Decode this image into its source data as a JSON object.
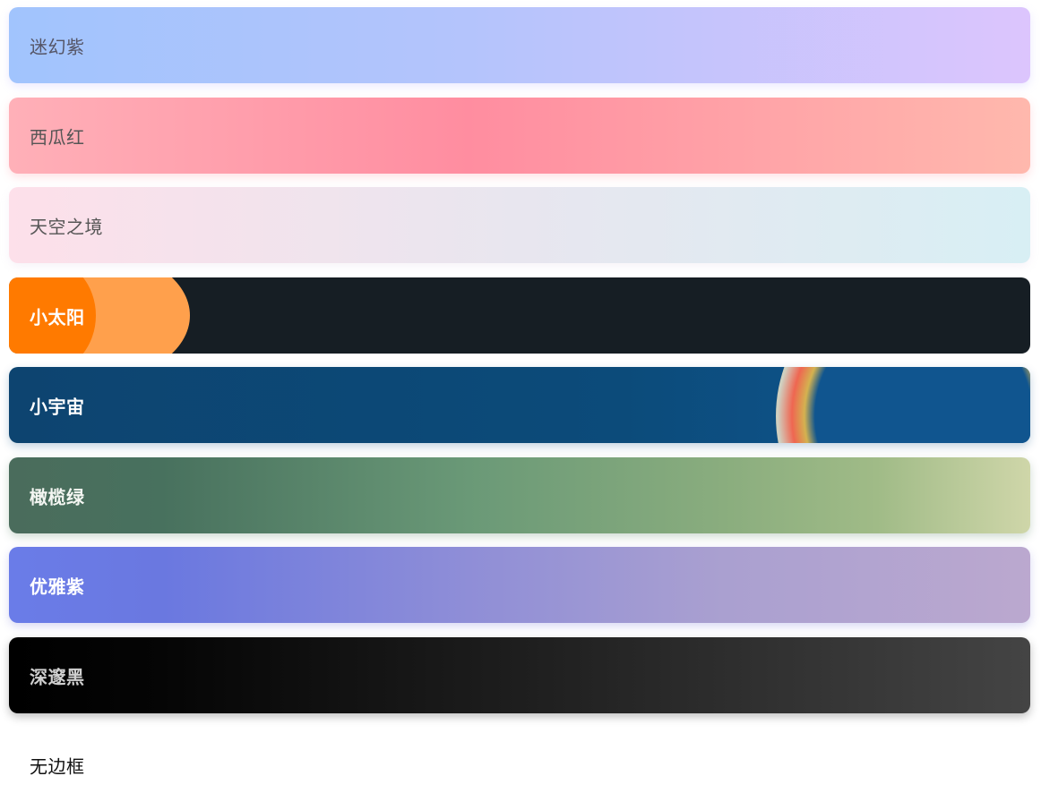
{
  "themes": [
    {
      "label": "迷幻紫"
    },
    {
      "label": "西瓜红"
    },
    {
      "label": "天空之境"
    },
    {
      "label": "小太阳"
    },
    {
      "label": "小宇宙"
    },
    {
      "label": "橄榄绿"
    },
    {
      "label": "优雅紫"
    },
    {
      "label": "深邃黑"
    },
    {
      "label": "无边框"
    }
  ]
}
